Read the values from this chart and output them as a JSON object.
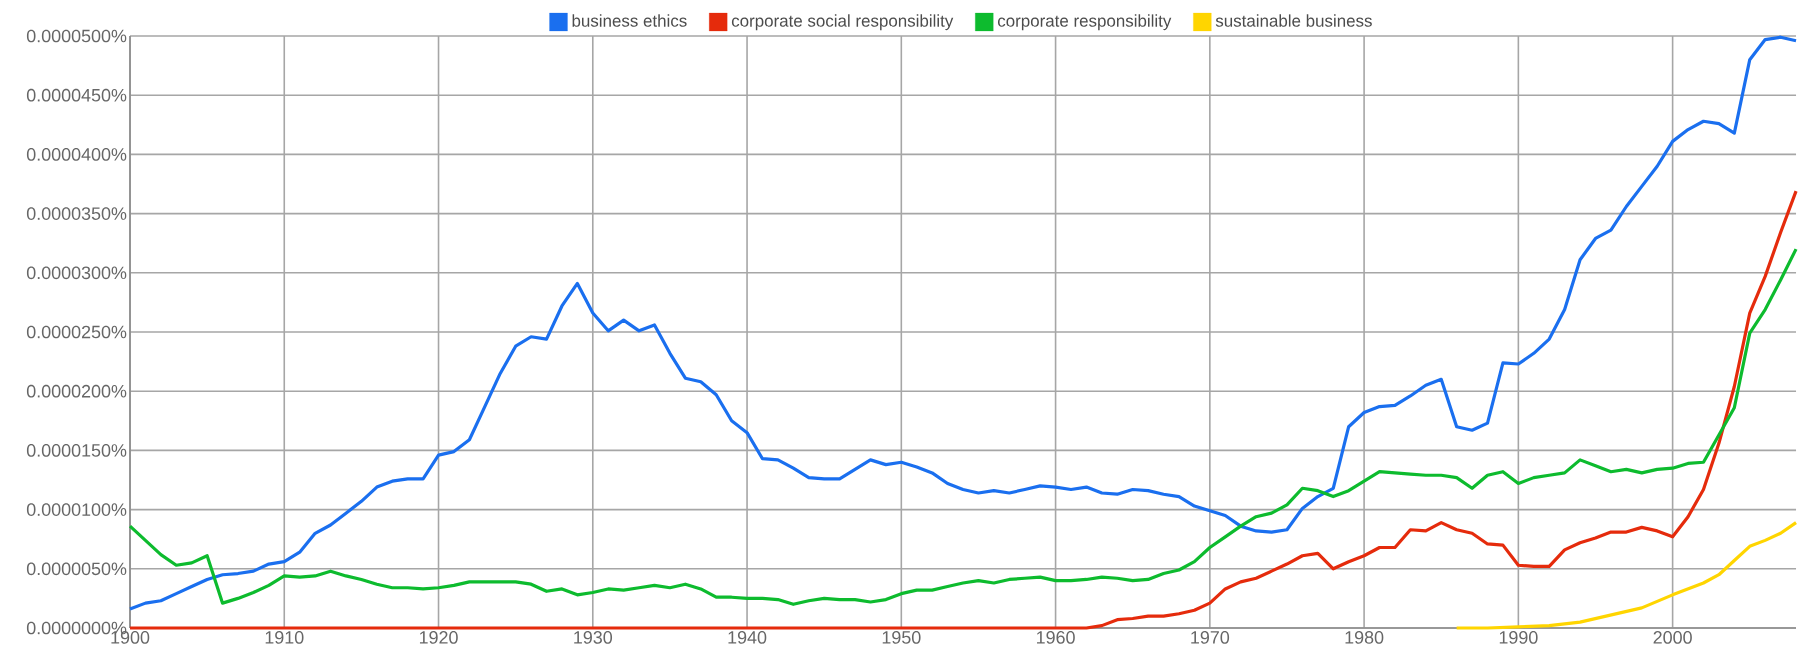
{
  "chart_data": {
    "type": "line",
    "xlim": [
      1900,
      2008
    ],
    "xticks": [
      1900,
      1910,
      1920,
      1930,
      1940,
      1950,
      1960,
      1970,
      1980,
      1990,
      2000
    ],
    "ylim": [
      0,
      5e-05
    ],
    "yticks": [
      {
        "value": 0,
        "label": "0.0000000%"
      },
      {
        "value": 5e-06,
        "label": "0.0000050%"
      },
      {
        "value": 1e-05,
        "label": "0.0000100%"
      },
      {
        "value": 1.5e-05,
        "label": "0.0000150%"
      },
      {
        "value": 2e-05,
        "label": "0.0000200%"
      },
      {
        "value": 2.5e-05,
        "label": "0.0000250%"
      },
      {
        "value": 3e-05,
        "label": "0.0000300%"
      },
      {
        "value": 3.5e-05,
        "label": "0.0000350%"
      },
      {
        "value": 4e-05,
        "label": "0.0000400%"
      },
      {
        "value": 4.5e-05,
        "label": "0.0000450%"
      },
      {
        "value": 5e-05,
        "label": "0.0000500%"
      }
    ],
    "grid": true,
    "legend": "top",
    "marker": "none",
    "line_style": "solid",
    "series": [
      {
        "name": "business ethics",
        "color": "#1a6fef",
        "x": [
          1900,
          1901,
          1902,
          1903,
          1904,
          1905,
          1906,
          1907,
          1908,
          1909,
          1910,
          1911,
          1912,
          1913,
          1914,
          1915,
          1916,
          1917,
          1918,
          1919,
          1920,
          1921,
          1922,
          1923,
          1924,
          1925,
          1926,
          1927,
          1928,
          1929,
          1930,
          1931,
          1932,
          1933,
          1934,
          1935,
          1936,
          1937,
          1938,
          1939,
          1940,
          1941,
          1942,
          1943,
          1944,
          1945,
          1946,
          1947,
          1948,
          1949,
          1950,
          1951,
          1952,
          1953,
          1954,
          1955,
          1956,
          1957,
          1958,
          1959,
          1960,
          1961,
          1962,
          1963,
          1964,
          1965,
          1966,
          1967,
          1968,
          1969,
          1970,
          1971,
          1972,
          1973,
          1974,
          1975,
          1976,
          1977,
          1978,
          1979,
          1980,
          1981,
          1982,
          1983,
          1984,
          1985,
          1986,
          1987,
          1988,
          1989,
          1990,
          1991,
          1992,
          1993,
          1994,
          1995,
          1996,
          1997,
          1998,
          1999,
          2000,
          2001,
          2002,
          2003,
          2004,
          2005,
          2006,
          2007,
          2008
        ],
        "values": [
          1.6e-06,
          2.1e-06,
          2.3e-06,
          2.9e-06,
          3.5e-06,
          4.1e-06,
          4.5e-06,
          4.6e-06,
          4.8e-06,
          5.4e-06,
          5.6e-06,
          6.4e-06,
          8e-06,
          8.7e-06,
          9.7e-06,
          1.07e-05,
          1.19e-05,
          1.24e-05,
          1.26e-05,
          1.26e-05,
          1.46e-05,
          1.49e-05,
          1.59e-05,
          1.87e-05,
          2.15e-05,
          2.38e-05,
          2.46e-05,
          2.44e-05,
          2.72e-05,
          2.91e-05,
          2.66e-05,
          2.51e-05,
          2.6e-05,
          2.51e-05,
          2.56e-05,
          2.32e-05,
          2.11e-05,
          2.08e-05,
          1.97e-05,
          1.75e-05,
          1.65e-05,
          1.43e-05,
          1.42e-05,
          1.35e-05,
          1.27e-05,
          1.26e-05,
          1.26e-05,
          1.34e-05,
          1.42e-05,
          1.38e-05,
          1.4e-05,
          1.36e-05,
          1.31e-05,
          1.22e-05,
          1.17e-05,
          1.14e-05,
          1.16e-05,
          1.14e-05,
          1.17e-05,
          1.2e-05,
          1.19e-05,
          1.17e-05,
          1.19e-05,
          1.14e-05,
          1.13e-05,
          1.17e-05,
          1.16e-05,
          1.13e-05,
          1.11e-05,
          1.03e-05,
          9.9e-06,
          9.5e-06,
          8.6e-06,
          8.2e-06,
          8.1e-06,
          8.3e-06,
          1.01e-05,
          1.11e-05,
          1.18e-05,
          1.7e-05,
          1.82e-05,
          1.87e-05,
          1.88e-05,
          1.96e-05,
          2.05e-05,
          2.1e-05,
          1.7e-05,
          1.67e-05,
          1.73e-05,
          2.24e-05,
          2.23e-05,
          2.32e-05,
          2.44e-05,
          2.69e-05,
          3.11e-05,
          3.29e-05,
          3.36e-05,
          3.56e-05,
          3.73e-05,
          3.9e-05,
          4.11e-05,
          4.21e-05,
          4.28e-05,
          4.26e-05,
          4.18e-05,
          4.8e-05,
          4.97e-05,
          4.99e-05,
          4.96e-05
        ]
      },
      {
        "name": "corporate social responsibility",
        "color": "#e52b0c",
        "x": [
          1900,
          1962,
          1963,
          1964,
          1965,
          1966,
          1967,
          1968,
          1969,
          1970,
          1971,
          1972,
          1973,
          1974,
          1975,
          1976,
          1977,
          1978,
          1979,
          1980,
          1981,
          1982,
          1983,
          1984,
          1985,
          1986,
          1987,
          1988,
          1989,
          1990,
          1991,
          1992,
          1993,
          1994,
          1995,
          1996,
          1997,
          1998,
          1999,
          2000,
          2001,
          2002,
          2003,
          2004,
          2005,
          2006,
          2007,
          2008
        ],
        "values": [
          0,
          0,
          2e-07,
          7e-07,
          8e-07,
          1e-06,
          1e-06,
          1.2e-06,
          1.5e-06,
          2.1e-06,
          3.3e-06,
          3.9e-06,
          4.2e-06,
          4.8e-06,
          5.4e-06,
          6.1e-06,
          6.3e-06,
          5e-06,
          5.6e-06,
          6.1e-06,
          6.8e-06,
          6.8e-06,
          8.3e-06,
          8.2e-06,
          8.9e-06,
          8.3e-06,
          8e-06,
          7.1e-06,
          7e-06,
          5.3e-06,
          5.2e-06,
          5.2e-06,
          6.6e-06,
          7.2e-06,
          7.6e-06,
          8.1e-06,
          8.1e-06,
          8.5e-06,
          8.2e-06,
          7.7e-06,
          9.4e-06,
          1.17e-05,
          1.56e-05,
          2.04e-05,
          2.66e-05,
          2.97e-05,
          3.34e-05,
          3.69e-05
        ]
      },
      {
        "name": "corporate responsibility",
        "color": "#0dbb2e",
        "x": [
          1900,
          1901,
          1902,
          1903,
          1904,
          1905,
          1906,
          1907,
          1908,
          1909,
          1910,
          1911,
          1912,
          1913,
          1914,
          1915,
          1916,
          1917,
          1918,
          1919,
          1920,
          1921,
          1922,
          1923,
          1924,
          1925,
          1926,
          1927,
          1928,
          1929,
          1930,
          1931,
          1932,
          1933,
          1934,
          1935,
          1936,
          1937,
          1938,
          1939,
          1940,
          1941,
          1942,
          1943,
          1944,
          1945,
          1946,
          1947,
          1948,
          1949,
          1950,
          1951,
          1952,
          1953,
          1954,
          1955,
          1956,
          1957,
          1958,
          1959,
          1960,
          1961,
          1962,
          1963,
          1964,
          1965,
          1966,
          1967,
          1968,
          1969,
          1970,
          1971,
          1972,
          1973,
          1974,
          1975,
          1976,
          1977,
          1978,
          1979,
          1980,
          1981,
          1982,
          1983,
          1984,
          1985,
          1986,
          1987,
          1988,
          1989,
          1990,
          1991,
          1992,
          1993,
          1994,
          1995,
          1996,
          1997,
          1998,
          1999,
          2000,
          2001,
          2002,
          2003,
          2004,
          2005,
          2006,
          2007,
          2008
        ],
        "values": [
          8.6e-06,
          7.4e-06,
          6.2e-06,
          5.3e-06,
          5.5e-06,
          6.1e-06,
          2.1e-06,
          2.5e-06,
          3e-06,
          3.6e-06,
          4.4e-06,
          4.3e-06,
          4.4e-06,
          4.8e-06,
          4.4e-06,
          4.1e-06,
          3.7e-06,
          3.4e-06,
          3.4e-06,
          3.3e-06,
          3.4e-06,
          3.6e-06,
          3.9e-06,
          3.9e-06,
          3.9e-06,
          3.9e-06,
          3.7e-06,
          3.1e-06,
          3.3e-06,
          2.8e-06,
          3e-06,
          3.3e-06,
          3.2e-06,
          3.4e-06,
          3.6e-06,
          3.4e-06,
          3.7e-06,
          3.3e-06,
          2.6e-06,
          2.6e-06,
          2.5e-06,
          2.5e-06,
          2.4e-06,
          2e-06,
          2.3e-06,
          2.5e-06,
          2.4e-06,
          2.4e-06,
          2.2e-06,
          2.4e-06,
          2.9e-06,
          3.2e-06,
          3.2e-06,
          3.5e-06,
          3.8e-06,
          4e-06,
          3.8e-06,
          4.1e-06,
          4.2e-06,
          4.3e-06,
          4e-06,
          4e-06,
          4.1e-06,
          4.3e-06,
          4.2e-06,
          4e-06,
          4.1e-06,
          4.6e-06,
          4.9e-06,
          5.6e-06,
          6.8e-06,
          7.7e-06,
          8.6e-06,
          9.4e-06,
          9.7e-06,
          1.04e-05,
          1.18e-05,
          1.16e-05,
          1.11e-05,
          1.16e-05,
          1.24e-05,
          1.32e-05,
          1.31e-05,
          1.3e-05,
          1.29e-05,
          1.29e-05,
          1.27e-05,
          1.18e-05,
          1.29e-05,
          1.32e-05,
          1.22e-05,
          1.27e-05,
          1.29e-05,
          1.31e-05,
          1.42e-05,
          1.37e-05,
          1.32e-05,
          1.34e-05,
          1.31e-05,
          1.34e-05,
          1.35e-05,
          1.39e-05,
          1.4e-05,
          1.63e-05,
          1.86e-05,
          2.49e-05,
          2.69e-05,
          2.94e-05,
          3.2e-05
        ]
      },
      {
        "name": "sustainable business",
        "color": "#ffd500",
        "x": [
          1986,
          1988,
          1990,
          1992,
          1994,
          1996,
          1998,
          2000,
          2002,
          2003,
          2004,
          2005,
          2006,
          2007,
          2008
        ],
        "values": [
          0,
          0,
          1e-07,
          2e-07,
          5e-07,
          1.1e-06,
          1.7e-06,
          2.8e-06,
          3.8e-06,
          4.5e-06,
          5.7e-06,
          6.9e-06,
          7.4e-06,
          8e-06,
          8.9e-06
        ]
      }
    ]
  }
}
